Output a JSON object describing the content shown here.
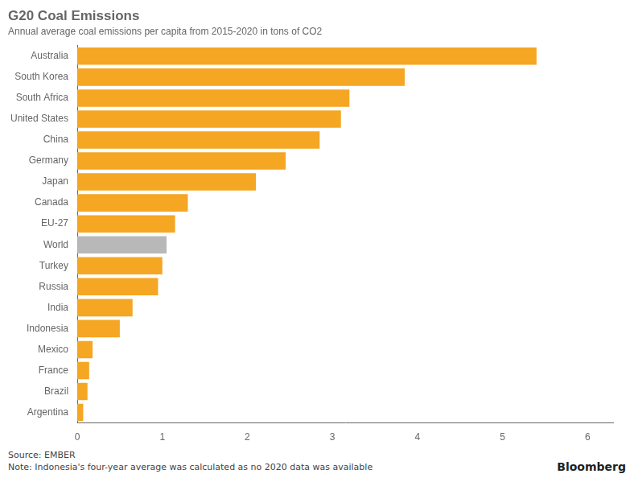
{
  "chart_data": {
    "type": "bar",
    "orientation": "horizontal",
    "title": "G20 Coal Emissions",
    "subtitle": "Annual average coal emissions per capita from 2015-2020 in tons of CO2",
    "annotations": [
      "Source: EMBER",
      "Note: Indonesia's four-year average was calculated as no 2020 data was available",
      "Bloomberg"
    ],
    "categories": [
      "Australia",
      "South Korea",
      "South Africa",
      "United States",
      "China",
      "Germany",
      "Japan",
      "Canada",
      "EU-27",
      "World",
      "Turkey",
      "Russia",
      "India",
      "Indonesia",
      "Mexico",
      "France",
      "Brazil",
      "Argentina"
    ],
    "values": [
      5.4,
      3.85,
      3.2,
      3.1,
      2.85,
      2.45,
      2.1,
      1.3,
      1.15,
      1.05,
      1.0,
      0.95,
      0.65,
      0.5,
      0.18,
      0.14,
      0.12,
      0.07
    ],
    "colors": [
      "#f5a623",
      "#f5a623",
      "#f5a623",
      "#f5a623",
      "#f5a623",
      "#f5a623",
      "#f5a623",
      "#f5a623",
      "#f5a623",
      "#b8b8b8",
      "#f5a623",
      "#f5a623",
      "#f5a623",
      "#f5a623",
      "#f5a623",
      "#f5a623",
      "#f5a623",
      "#f5a623"
    ],
    "xlim": [
      0,
      6.3
    ],
    "xticks": [
      0,
      1,
      2,
      3,
      4,
      5,
      6
    ],
    "grid": false
  }
}
